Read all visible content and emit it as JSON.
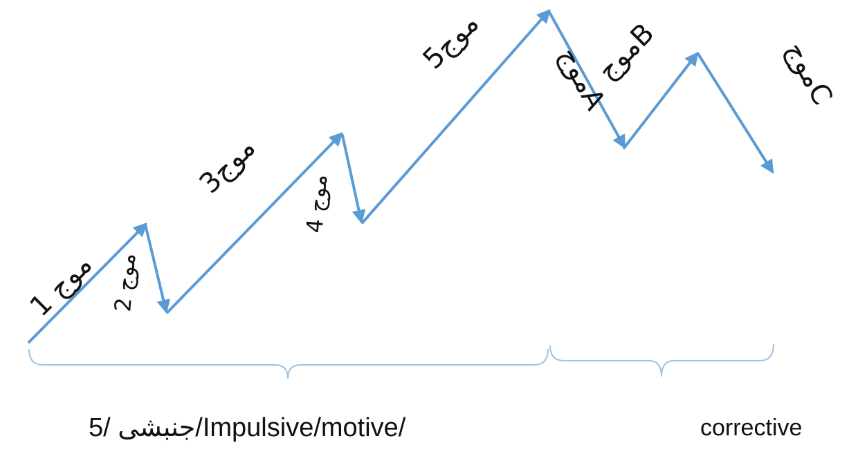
{
  "labels": {
    "wave1": "موج 1",
    "wave2": "موج 2",
    "wave3": "موج3",
    "wave4": "موج 4",
    "wave5": "موج5",
    "waveA": "موجA",
    "waveB": "موجB",
    "waveC": "موجC"
  },
  "captions": {
    "impulse": "جنبشی /5/Impulsive/motive/",
    "corrective": "corrective"
  },
  "colors": {
    "wave_line": "#5B9BD5",
    "bracket": "#9DC3E6",
    "text": "#111111"
  }
}
